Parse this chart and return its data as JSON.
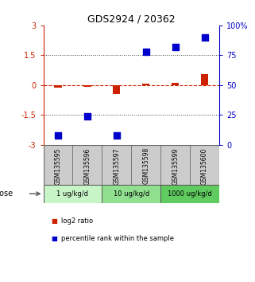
{
  "title": "GDS2924 / 20362",
  "samples": [
    "GSM135595",
    "GSM135596",
    "GSM135597",
    "GSM135598",
    "GSM135599",
    "GSM135600"
  ],
  "log2_ratio": [
    -0.15,
    -0.1,
    -0.45,
    0.08,
    0.1,
    0.55
  ],
  "percentile_rank": [
    8,
    24,
    8,
    78,
    82,
    90
  ],
  "dose_groups": [
    {
      "label": "1 ug/kg/d",
      "samples": [
        0,
        1
      ],
      "color": "#c8f5c8"
    },
    {
      "label": "10 ug/kg/d",
      "samples": [
        2,
        3
      ],
      "color": "#90e090"
    },
    {
      "label": "1000 ug/kg/d",
      "samples": [
        4,
        5
      ],
      "color": "#60cc60"
    }
  ],
  "left_axis_color": "#cc2200",
  "right_axis_color": "#0000cc",
  "bar_color": "#cc2200",
  "square_color": "#0000cc",
  "ylim_left": [
    -3,
    3
  ],
  "ylim_right": [
    0,
    100
  ],
  "yticks_left": [
    -3,
    -1.5,
    0,
    1.5,
    3
  ],
  "yticks_right": [
    0,
    25,
    50,
    75,
    100
  ],
  "background_color": "#ffffff",
  "sample_box_color": "#cccccc",
  "legend_labels": [
    "log2 ratio",
    "percentile rank within the sample"
  ]
}
